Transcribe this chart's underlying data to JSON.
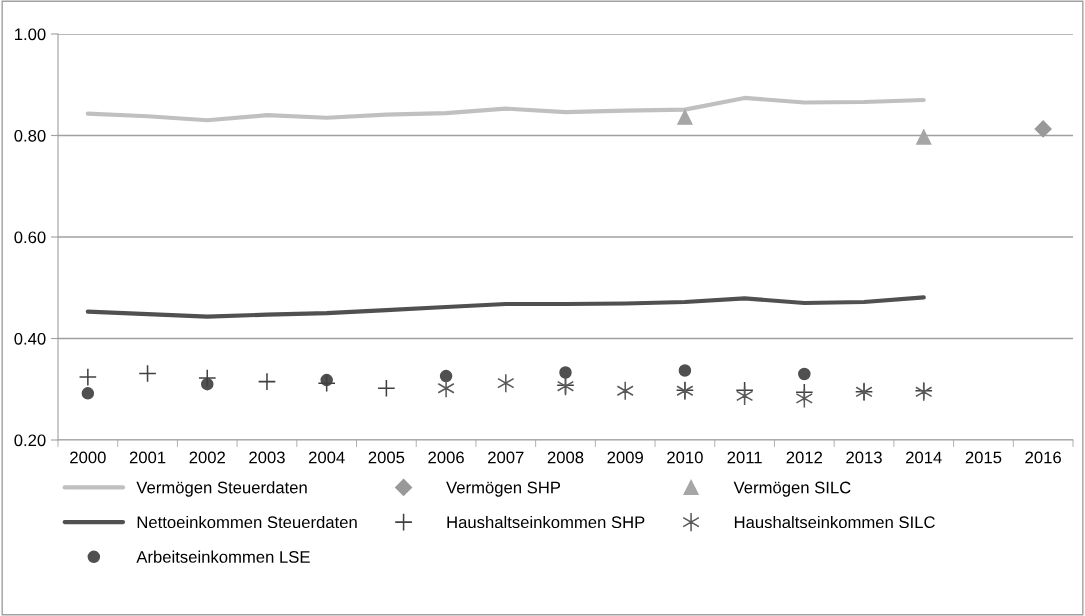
{
  "chart_data": {
    "type": "line",
    "categories": [
      "2000",
      "2001",
      "2002",
      "2003",
      "2004",
      "2005",
      "2006",
      "2007",
      "2008",
      "2009",
      "2010",
      "2011",
      "2012",
      "2013",
      "2014",
      "2015",
      "2016"
    ],
    "series": [
      {
        "name": "Vermögen Steuerdaten",
        "marker": "none",
        "color": "#c0c0c0",
        "values": [
          0.843,
          0.838,
          0.83,
          0.84,
          0.835,
          0.841,
          0.844,
          0.853,
          0.846,
          0.849,
          0.851,
          0.874,
          0.865,
          0.866,
          0.87,
          null,
          null
        ]
      },
      {
        "name": "Vermögen SHP",
        "type": "scatter",
        "marker": "diamond",
        "color": "#999999",
        "values": [
          null,
          null,
          null,
          null,
          null,
          null,
          null,
          null,
          null,
          null,
          null,
          null,
          null,
          null,
          null,
          null,
          0.813
        ]
      },
      {
        "name": "Vermögen SILC",
        "type": "scatter",
        "marker": "triangle",
        "color": "#a6a6a6",
        "values": [
          null,
          null,
          null,
          null,
          null,
          null,
          null,
          null,
          null,
          null,
          0.836,
          null,
          null,
          null,
          0.797,
          null,
          null
        ]
      },
      {
        "name": "Nettoeinkommen Steuerdaten",
        "marker": "none",
        "color": "#505050",
        "values": [
          0.453,
          0.448,
          0.443,
          0.447,
          0.45,
          0.456,
          0.462,
          0.468,
          0.468,
          0.469,
          0.472,
          0.479,
          0.47,
          0.472,
          0.481,
          null,
          null
        ]
      },
      {
        "name": "Haushaltseinkommen SHP",
        "type": "scatter",
        "marker": "plus",
        "color": "#404040",
        "values": [
          0.324,
          0.331,
          0.322,
          0.315,
          0.312,
          0.302,
          null,
          null,
          0.308,
          null,
          0.298,
          0.298,
          0.294,
          0.295,
          0.297,
          null,
          null
        ]
      },
      {
        "name": "Haushaltseinkommen SILC",
        "type": "scatter",
        "marker": "cross",
        "color": "#595959",
        "values": [
          null,
          null,
          null,
          null,
          null,
          null,
          0.302,
          0.312,
          0.306,
          0.297,
          0.297,
          0.287,
          0.282,
          0.295,
          0.295,
          null,
          null
        ]
      },
      {
        "name": "Arbeitseinkommen LSE",
        "type": "scatter",
        "marker": "circle",
        "color": "#505050",
        "values": [
          0.292,
          null,
          0.31,
          null,
          0.318,
          null,
          0.326,
          null,
          0.333,
          null,
          0.337,
          null,
          0.33,
          null,
          null,
          null,
          null
        ]
      }
    ],
    "ylim": [
      0.2,
      1.0
    ],
    "yticks": [
      {
        "value": 0.2,
        "label": "0.20"
      },
      {
        "value": 0.4,
        "label": "0.40"
      },
      {
        "value": 0.6,
        "label": "0.60"
      },
      {
        "value": 0.8,
        "label": "0.80"
      },
      {
        "value": 1.0,
        "label": "1.00"
      }
    ],
    "grid": "y",
    "legend": "bottom"
  }
}
